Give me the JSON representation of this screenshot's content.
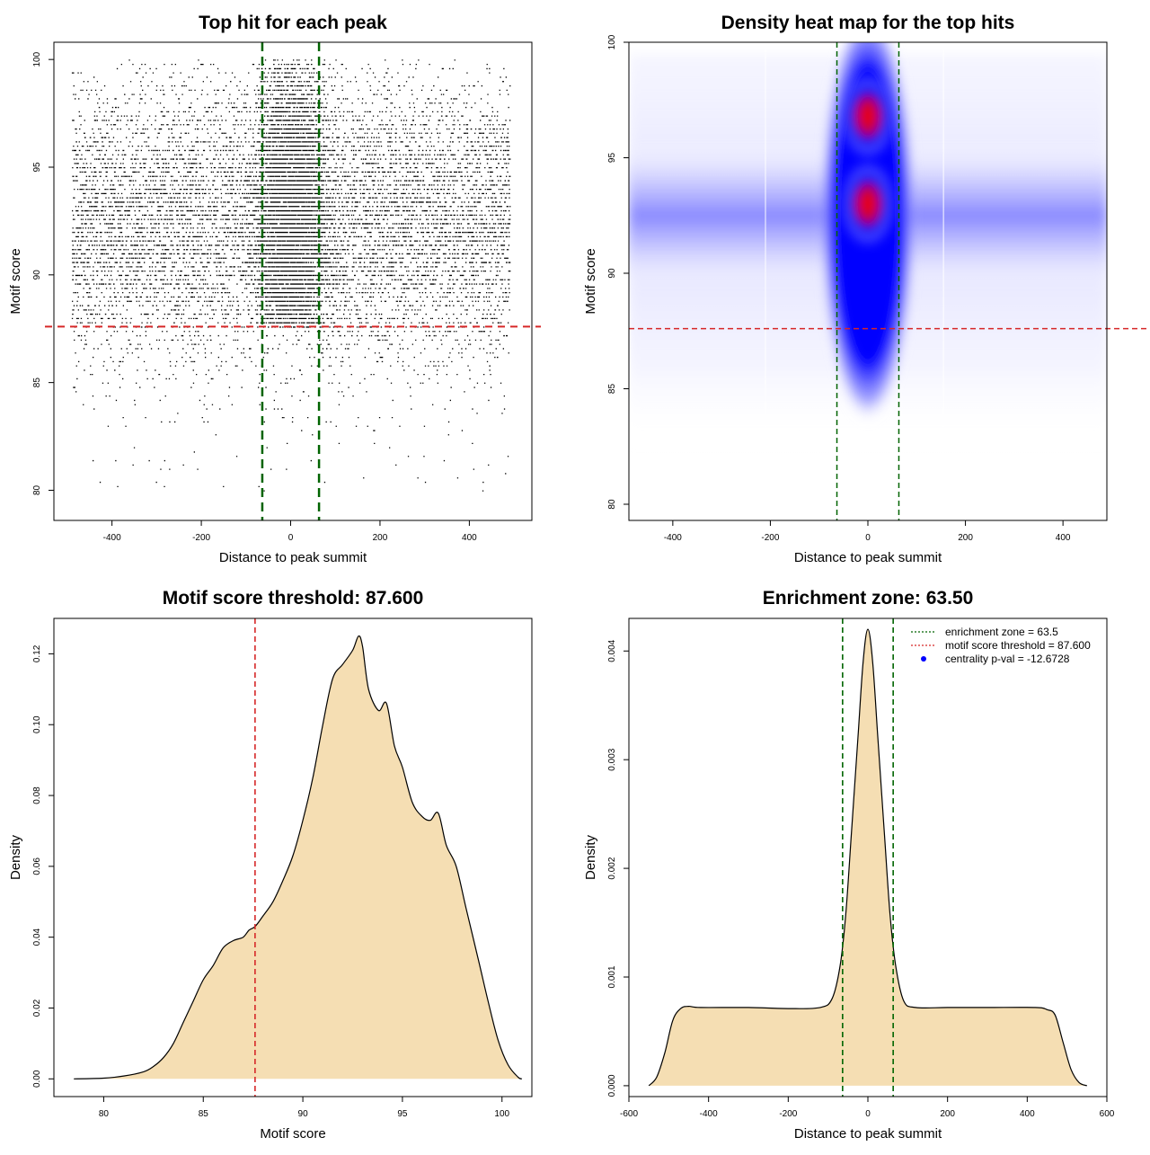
{
  "colors": {
    "threshold_line": "#d62728",
    "zone_line": "#006400",
    "density_fill": "#f5deb3",
    "heat_low": "#ffffff",
    "heat_mid": "#0000ff",
    "heat_high": "#ff0000",
    "pval_point": "#0000ff",
    "points": "#000000"
  },
  "chart_data": [
    {
      "id": "scatter",
      "type": "scatter",
      "title": "Top hit for each peak",
      "xlabel": "Distance to peak summit",
      "ylabel": "Motif score",
      "xlim": [
        -530,
        540
      ],
      "ylim": [
        78.6,
        100.8
      ],
      "xticks": [
        -400,
        -200,
        0,
        200,
        400
      ],
      "yticks": [
        80,
        85,
        90,
        95,
        100
      ],
      "hlines": [
        87.6
      ],
      "vlines": [
        -63.5,
        63.5
      ],
      "x_range_points": [
        -490,
        490
      ],
      "y_range_points": [
        80,
        100
      ],
      "central_cluster_x": [
        -60,
        60
      ],
      "central_cluster_y": [
        87.6,
        100
      ]
    },
    {
      "id": "heatmap",
      "type": "heatmap",
      "title": "Density heat map for the top hits",
      "xlabel": "Distance to peak summit",
      "ylabel": "Motif score",
      "xlim": [
        -490,
        490
      ],
      "ylim": [
        79.3,
        100
      ],
      "xticks": [
        -400,
        -200,
        0,
        200,
        400
      ],
      "yticks": [
        80,
        85,
        90,
        95,
        100
      ],
      "hlines": [
        87.6
      ],
      "vlines": [
        -63.5,
        63.5
      ],
      "hotspots": [
        {
          "x": 0,
          "y": 96.8,
          "intensity": 1.0
        },
        {
          "x": 0,
          "y": 93.0,
          "intensity": 1.0
        }
      ],
      "band_y": 92.5
    },
    {
      "id": "score_density",
      "type": "area",
      "title": "Motif score threshold: 87.600",
      "xlabel": "Motif score",
      "ylabel": "Density",
      "xlim": [
        77.5,
        101.5
      ],
      "ylim": [
        -0.005,
        0.13
      ],
      "xticks": [
        80,
        85,
        90,
        95,
        100
      ],
      "yticks": [
        0.0,
        0.02,
        0.04,
        0.06,
        0.08,
        0.1,
        0.12
      ],
      "ytick_labels": [
        "0.00",
        "0.02",
        "0.04",
        "0.06",
        "0.08",
        "0.10",
        "0.12"
      ],
      "vlines": [
        87.6
      ],
      "x": [
        78.5,
        80,
        81,
        82,
        82.5,
        83,
        83.5,
        84,
        84.5,
        85,
        85.5,
        86,
        86.5,
        87,
        87.3,
        87.6,
        88,
        88.5,
        89,
        89.5,
        90,
        90.5,
        91,
        91.5,
        92,
        92.5,
        92.8,
        93,
        93.3,
        93.8,
        94.2,
        94.6,
        95,
        95.5,
        96,
        96.4,
        96.8,
        97.2,
        97.7,
        98.2,
        98.8,
        99.3,
        99.8,
        100.3,
        100.8,
        101.0
      ],
      "y": [
        0.0,
        0.0002,
        0.0008,
        0.002,
        0.0035,
        0.006,
        0.01,
        0.016,
        0.022,
        0.028,
        0.032,
        0.037,
        0.039,
        0.04,
        0.042,
        0.043,
        0.046,
        0.05,
        0.056,
        0.063,
        0.073,
        0.085,
        0.1,
        0.113,
        0.117,
        0.121,
        0.125,
        0.122,
        0.11,
        0.104,
        0.106,
        0.094,
        0.088,
        0.078,
        0.074,
        0.073,
        0.075,
        0.066,
        0.06,
        0.048,
        0.034,
        0.022,
        0.011,
        0.004,
        0.0005,
        0.0
      ]
    },
    {
      "id": "distance_density",
      "type": "area",
      "title": "Enrichment zone: 63.50",
      "xlabel": "Distance to peak summit",
      "ylabel": "Density",
      "xlim": [
        -600,
        600
      ],
      "ylim": [
        -0.0001,
        0.0043
      ],
      "xticks": [
        -600,
        -400,
        -200,
        0,
        200,
        400,
        600
      ],
      "yticks": [
        0.0,
        0.001,
        0.002,
        0.003,
        0.004
      ],
      "ytick_labels": [
        "0.000",
        "0.001",
        "0.002",
        "0.003",
        "0.004"
      ],
      "vlines": [
        -63.5,
        63.5
      ],
      "x": [
        -550,
        -530,
        -510,
        -490,
        -470,
        -450,
        -420,
        -300,
        -200,
        -120,
        -90,
        -70,
        -55,
        -40,
        -25,
        -12,
        0,
        12,
        25,
        40,
        55,
        70,
        90,
        120,
        200,
        300,
        420,
        450,
        470,
        490,
        510,
        530,
        550
      ],
      "y": [
        0.0,
        8e-05,
        0.0003,
        0.0006,
        0.00071,
        0.00073,
        0.00072,
        0.00072,
        0.00071,
        0.00072,
        0.0008,
        0.0011,
        0.0016,
        0.0024,
        0.0032,
        0.0039,
        0.0042,
        0.0039,
        0.0032,
        0.0024,
        0.0016,
        0.0011,
        0.00078,
        0.00072,
        0.00072,
        0.00072,
        0.00072,
        0.0007,
        0.00065,
        0.0004,
        0.00015,
        3e-05,
        0.0
      ],
      "legend": {
        "position": "top-right",
        "entries": [
          {
            "label": "enrichment zone = 63.5",
            "style": "dotted-line",
            "color": "#006400"
          },
          {
            "label": "motif score threshold = 87.600",
            "style": "dotted-line",
            "color": "#d62728"
          },
          {
            "label": "centrality p-val = -12.6728",
            "style": "point",
            "color": "#0000ff"
          }
        ]
      }
    }
  ]
}
